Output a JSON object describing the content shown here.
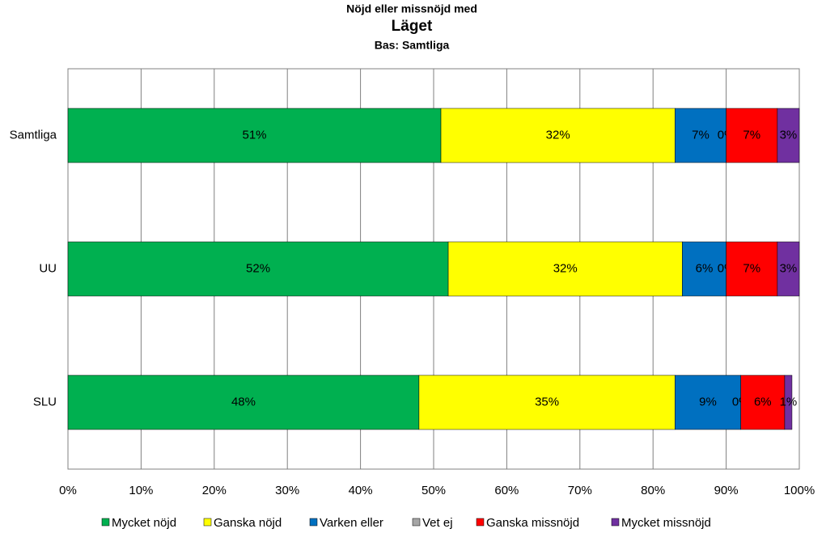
{
  "chart_data": {
    "type": "stacked-bar-horizontal",
    "title": "Nöjd eller missnöjd med",
    "subtitle": "Läget",
    "caption": "Bas: Samtliga",
    "categories": [
      "Samtliga",
      "UU",
      "SLU"
    ],
    "series": [
      {
        "name": "Mycket nöjd",
        "color": "#00b050",
        "values": [
          51,
          52,
          48
        ],
        "value_labels": [
          "51%",
          "52%",
          "48%"
        ]
      },
      {
        "name": "Ganska nöjd",
        "color": "#ffff00",
        "values": [
          32,
          32,
          35
        ],
        "value_labels": [
          "32%",
          "32%",
          "35%"
        ]
      },
      {
        "name": "Varken eller",
        "color": "#0070c0",
        "values": [
          7,
          6,
          9
        ],
        "value_labels": [
          "7%",
          "6%",
          "9%"
        ]
      },
      {
        "name": "Vet ej",
        "color": "#a6a6a6",
        "values": [
          0,
          0,
          0
        ],
        "value_labels": [
          "0%",
          "0%",
          "0%"
        ]
      },
      {
        "name": "Ganska missnöjd",
        "color": "#ff0000",
        "values": [
          7,
          7,
          6
        ],
        "value_labels": [
          "7%",
          "7%",
          "6%"
        ]
      },
      {
        "name": "Mycket missnöjd",
        "color": "#7030a0",
        "values": [
          3,
          3,
          1
        ],
        "value_labels": [
          "3%",
          "3%",
          "1%"
        ]
      }
    ],
    "xlim": [
      0,
      100
    ],
    "xticks": [
      {
        "value": 0,
        "label": "0%"
      },
      {
        "value": 10,
        "label": "10%"
      },
      {
        "value": 20,
        "label": "20%"
      },
      {
        "value": 30,
        "label": "30%"
      },
      {
        "value": 40,
        "label": "40%"
      },
      {
        "value": 50,
        "label": "50%"
      },
      {
        "value": 60,
        "label": "60%"
      },
      {
        "value": 70,
        "label": "70%"
      },
      {
        "value": 80,
        "label": "80%"
      },
      {
        "value": 90,
        "label": "90%"
      },
      {
        "value": 100,
        "label": "100%"
      }
    ],
    "grid": true,
    "legend": "bottom"
  }
}
